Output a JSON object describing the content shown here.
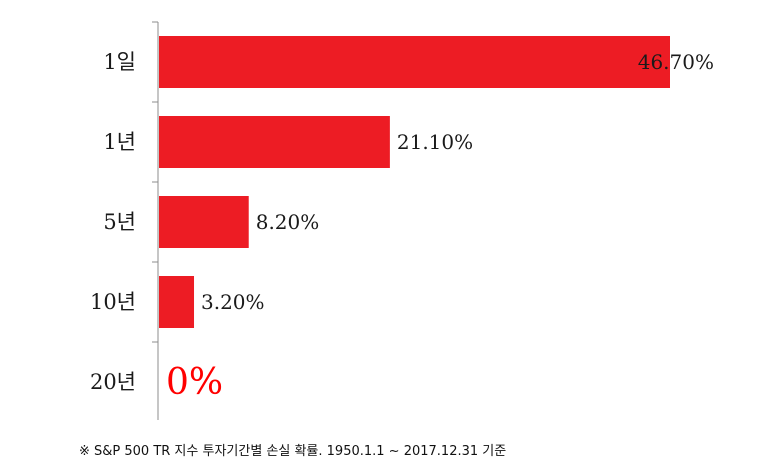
{
  "chart_data": {
    "type": "bar",
    "orientation": "horizontal",
    "categories": [
      "1일",
      "1년",
      "5년",
      "10년",
      "20년"
    ],
    "values": [
      46.7,
      21.1,
      8.2,
      3.2,
      0
    ],
    "value_labels": [
      "46.70%",
      "21.10%",
      "8.20%",
      "3.20%",
      "0%"
    ],
    "bar_color": "#ed1c24",
    "zero_label_color": "#ff0000",
    "xlim": [
      0,
      46.7
    ],
    "grid": false,
    "legend": "none"
  },
  "footnote": "※ S&P 500 TR 지수 투자기간별 손실 확률. 1950.1.1 ~ 2017.12.31 기준"
}
